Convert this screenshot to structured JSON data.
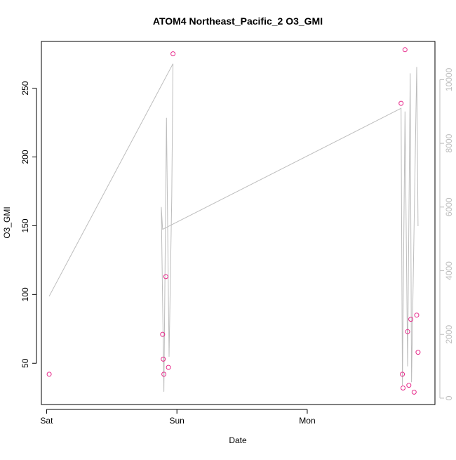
{
  "chart_data": {
    "type": "scatter",
    "title": "ATOM4 Northeast_Pacific_2 O3_GMI",
    "xlabel": "Date",
    "ylabel": "O3_GMI",
    "x_ticks": [
      {
        "label": "Sat",
        "x": 0
      },
      {
        "label": "Sun",
        "x": 1
      },
      {
        "label": "Mon",
        "x": 2
      }
    ],
    "xlim": [
      -0.04,
      2.98
    ],
    "ylim": [
      20,
      284
    ],
    "y_ticks": [
      50,
      100,
      150,
      200,
      250
    ],
    "y2lim": [
      -200,
      11200
    ],
    "y2_ticks": [
      0,
      2000,
      4000,
      6000,
      8000,
      10000
    ],
    "colors": {
      "points": "#e7298a",
      "line": "#bdbdbd",
      "right_axis": "#bdbdbd"
    },
    "points": [
      {
        "x": 0.02,
        "y": 42
      },
      {
        "x": 0.89,
        "y": 71
      },
      {
        "x": 0.895,
        "y": 53
      },
      {
        "x": 0.9,
        "y": 42
      },
      {
        "x": 0.915,
        "y": 113
      },
      {
        "x": 0.935,
        "y": 47
      },
      {
        "x": 0.97,
        "y": 275
      },
      {
        "x": 2.72,
        "y": 239
      },
      {
        "x": 2.73,
        "y": 42
      },
      {
        "x": 2.735,
        "y": 32
      },
      {
        "x": 2.75,
        "y": 278
      },
      {
        "x": 2.77,
        "y": 73
      },
      {
        "x": 2.78,
        "y": 34
      },
      {
        "x": 2.795,
        "y": 82
      },
      {
        "x": 2.82,
        "y": 29
      },
      {
        "x": 2.84,
        "y": 85
      },
      {
        "x": 2.85,
        "y": 58
      }
    ],
    "line_series": {
      "axis": "right",
      "values": [
        {
          "x": 0.02,
          "y": 3200
        },
        {
          "x": 0.97,
          "y": 10500
        },
        {
          "x": 0.96,
          "y": 6300
        },
        {
          "x": 0.94,
          "y": 1300
        },
        {
          "x": 0.92,
          "y": 8800
        },
        {
          "x": 0.9,
          "y": 200
        },
        {
          "x": 0.88,
          "y": 6000
        },
        {
          "x": 0.89,
          "y": 5300
        },
        {
          "x": 2.72,
          "y": 9100
        },
        {
          "x": 2.73,
          "y": 400
        },
        {
          "x": 2.75,
          "y": 9000
        },
        {
          "x": 2.77,
          "y": 1000
        },
        {
          "x": 2.79,
          "y": 10200
        },
        {
          "x": 2.8,
          "y": 500
        },
        {
          "x": 2.84,
          "y": 10400
        },
        {
          "x": 2.85,
          "y": 5400
        }
      ]
    }
  }
}
